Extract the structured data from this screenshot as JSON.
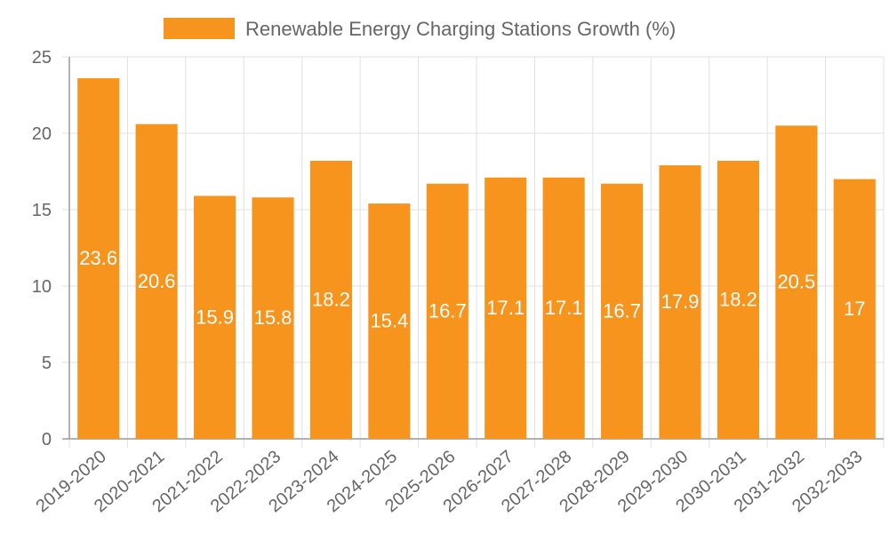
{
  "chart_data": {
    "type": "bar",
    "categories": [
      "2019-2020",
      "2020-2021",
      "2021-2022",
      "2022-2023",
      "2023-2024",
      "2024-2025",
      "2025-2026",
      "2026-2027",
      "2027-2028",
      "2028-2029",
      "2029-2030",
      "2030-2031",
      "2031-2032",
      "2032-2033"
    ],
    "series": [
      {
        "name": "Renewable Energy Charging Stations Growth (%)",
        "values": [
          23.6,
          20.6,
          15.9,
          15.8,
          18.2,
          15.4,
          16.7,
          17.1,
          17.1,
          16.7,
          17.9,
          18.2,
          20.5,
          17
        ],
        "color": "#f7941d"
      }
    ],
    "ylim": [
      0,
      25
    ],
    "yticks": [
      0,
      5,
      10,
      15,
      20,
      25
    ],
    "grid": true,
    "legend_position": "top-center",
    "data_labels": true
  }
}
